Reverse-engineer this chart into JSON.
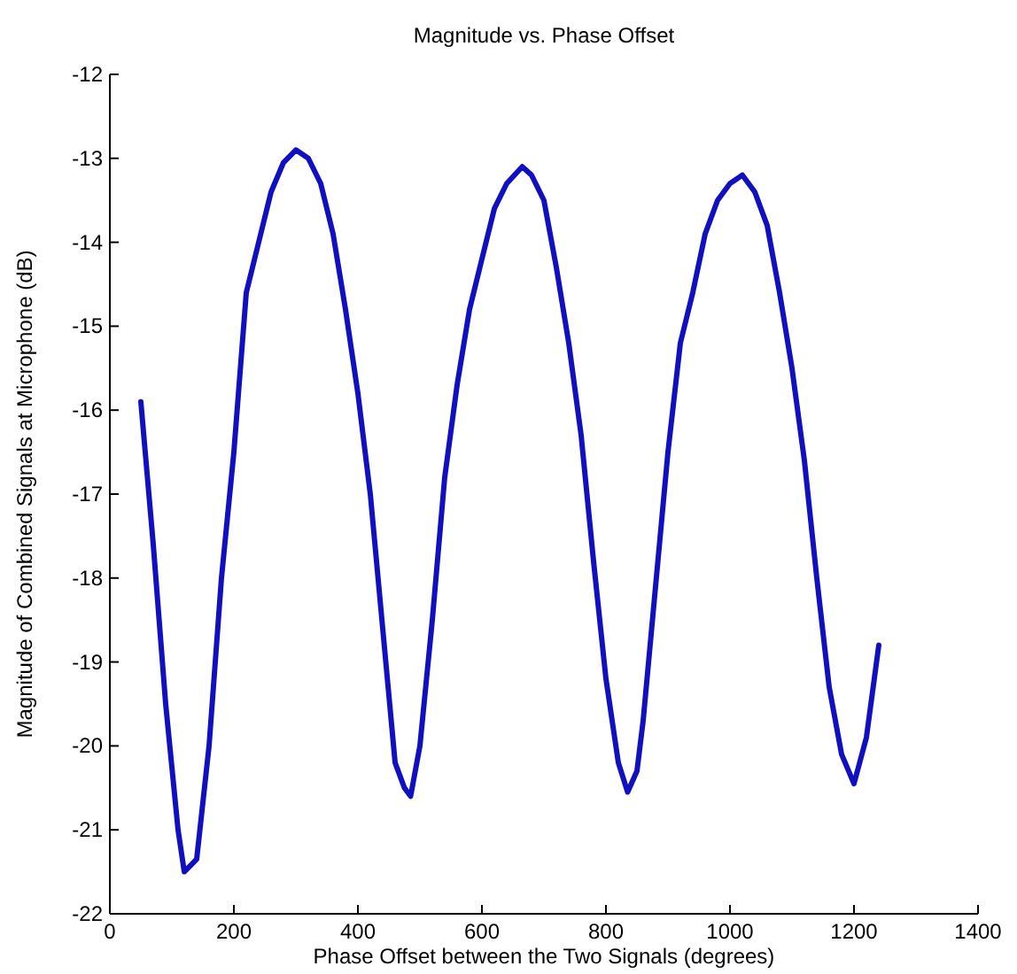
{
  "chart_data": {
    "type": "line",
    "title": "Magnitude vs. Phase Offset",
    "xlabel": "Phase Offset between the Two Signals (degrees)",
    "ylabel": "Magnitude of Combined Signals at Microphone (dB)",
    "xlim": [
      0,
      1400
    ],
    "xticks": [
      0,
      200,
      400,
      600,
      800,
      1000,
      1200,
      1400
    ],
    "ylim": [
      -22,
      -12
    ],
    "yticks": [
      -22,
      -21,
      -20,
      -19,
      -18,
      -17,
      -16,
      -15,
      -14,
      -13,
      -12
    ],
    "grid": false,
    "marker": "none",
    "line_style": "solid",
    "series": [
      {
        "color": "#1010c0",
        "x": [
          50,
          70,
          90,
          110,
          120,
          140,
          160,
          180,
          200,
          220,
          240,
          260,
          280,
          300,
          320,
          340,
          360,
          380,
          400,
          420,
          440,
          460,
          475,
          485,
          500,
          520,
          540,
          560,
          580,
          600,
          620,
          640,
          665,
          680,
          700,
          720,
          740,
          760,
          780,
          800,
          820,
          835,
          850,
          860,
          880,
          900,
          920,
          940,
          960,
          980,
          1000,
          1020,
          1040,
          1060,
          1080,
          1100,
          1120,
          1140,
          1160,
          1180,
          1200,
          1220,
          1240
        ],
        "values": [
          -15.9,
          -17.6,
          -19.5,
          -21,
          -21.5,
          -21.35,
          -20,
          -18,
          -16.5,
          -14.6,
          -14,
          -13.4,
          -13.05,
          -12.9,
          -13,
          -13.3,
          -13.9,
          -14.8,
          -15.8,
          -17,
          -18.6,
          -20.2,
          -20.5,
          -20.6,
          -20,
          -18.5,
          -16.8,
          -15.7,
          -14.8,
          -14.2,
          -13.6,
          -13.3,
          -13.1,
          -13.2,
          -13.5,
          -14.3,
          -15.2,
          -16.3,
          -17.8,
          -19.2,
          -20.2,
          -20.55,
          -20.3,
          -19.7,
          -18.1,
          -16.5,
          -15.2,
          -14.6,
          -13.9,
          -13.5,
          -13.3,
          -13.2,
          -13.4,
          -13.8,
          -14.6,
          -15.5,
          -16.6,
          -18,
          -19.3,
          -20.1,
          -20.45,
          -19.9,
          -18.8
        ]
      }
    ]
  }
}
